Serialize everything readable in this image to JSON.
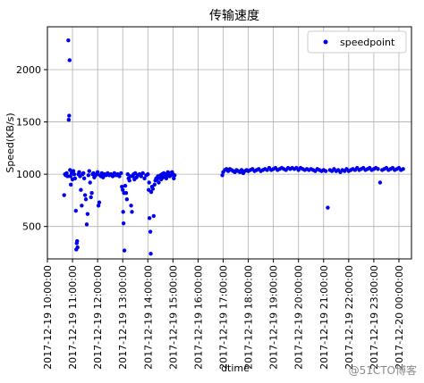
{
  "chart_data": {
    "type": "scatter",
    "title": "传输速度",
    "xlabel": "dtime",
    "ylabel": "Speed(KB/s)",
    "xlim": [
      "2017-12-19 10:00",
      "2017-12-20 00:30"
    ],
    "ylim": [
      190,
      2410
    ],
    "grid": true,
    "legend_position": "top-right",
    "marker_color": "#0000ee",
    "y_ticks": [
      500,
      1000,
      1500,
      2000
    ],
    "x_ticks": [
      "2017-12-19 10:00:00",
      "2017-12-19 11:00:00",
      "2017-12-19 12:00:00",
      "2017-12-19 13:00:00",
      "2017-12-19 14:00:00",
      "2017-12-19 15:00:00",
      "2017-12-19 16:00:00",
      "2017-12-19 17:00:00",
      "2017-12-19 18:00:00",
      "2017-12-19 19:00:00",
      "2017-12-19 20:00:00",
      "2017-12-19 21:00:00",
      "2017-12-19 22:00:00",
      "2017-12-19 23:00:00",
      "2017-12-20 00:00:00"
    ],
    "series": [
      {
        "name": "speedpoint",
        "points": [
          [
            "2017-12-19 10:40",
            800
          ],
          [
            "2017-12-19 10:42",
            1000
          ],
          [
            "2017-12-19 10:44",
            990
          ],
          [
            "2017-12-19 10:46",
            1010
          ],
          [
            "2017-12-19 10:48",
            980
          ],
          [
            "2017-12-19 10:50",
            2280
          ],
          [
            "2017-12-19 10:51",
            1520
          ],
          [
            "2017-12-19 10:52",
            1560
          ],
          [
            "2017-12-19 10:53",
            2090
          ],
          [
            "2017-12-19 10:54",
            1040
          ],
          [
            "2017-12-19 10:55",
            980
          ],
          [
            "2017-12-19 10:56",
            900
          ],
          [
            "2017-12-19 10:58",
            1010
          ],
          [
            "2017-12-19 11:00",
            950
          ],
          [
            "2017-12-19 11:02",
            1030
          ],
          [
            "2017-12-19 11:04",
            1000
          ],
          [
            "2017-12-19 11:06",
            960
          ],
          [
            "2017-12-19 11:08",
            650
          ],
          [
            "2017-12-19 11:09",
            280
          ],
          [
            "2017-12-19 11:10",
            340
          ],
          [
            "2017-12-19 11:11",
            360
          ],
          [
            "2017-12-19 11:12",
            300
          ],
          [
            "2017-12-19 11:14",
            1000
          ],
          [
            "2017-12-19 11:16",
            1020
          ],
          [
            "2017-12-19 11:18",
            980
          ],
          [
            "2017-12-19 11:20",
            850
          ],
          [
            "2017-12-19 11:22",
            700
          ],
          [
            "2017-12-19 11:24",
            1000
          ],
          [
            "2017-12-19 11:26",
            1010
          ],
          [
            "2017-12-19 11:28",
            960
          ],
          [
            "2017-12-19 11:30",
            800
          ],
          [
            "2017-12-19 11:32",
            760
          ],
          [
            "2017-12-19 11:34",
            520
          ],
          [
            "2017-12-19 11:36",
            620
          ],
          [
            "2017-12-19 11:38",
            990
          ],
          [
            "2017-12-19 11:40",
            1030
          ],
          [
            "2017-12-19 11:42",
            920
          ],
          [
            "2017-12-19 11:44",
            780
          ],
          [
            "2017-12-19 11:46",
            820
          ],
          [
            "2017-12-19 11:48",
            1000
          ],
          [
            "2017-12-19 11:50",
            1010
          ],
          [
            "2017-12-19 11:52",
            970
          ],
          [
            "2017-12-19 11:55",
            990
          ],
          [
            "2017-12-19 11:58",
            1000
          ],
          [
            "2017-12-19 12:00",
            1020
          ],
          [
            "2017-12-19 12:02",
            700
          ],
          [
            "2017-12-19 12:04",
            730
          ],
          [
            "2017-12-19 12:06",
            990
          ],
          [
            "2017-12-19 12:08",
            980
          ],
          [
            "2017-12-19 12:10",
            1010
          ],
          [
            "2017-12-19 12:13",
            970
          ],
          [
            "2017-12-19 12:16",
            1000
          ],
          [
            "2017-12-19 12:20",
            990
          ],
          [
            "2017-12-19 12:24",
            1010
          ],
          [
            "2017-12-19 12:28",
            990
          ],
          [
            "2017-12-19 12:32",
            1000
          ],
          [
            "2017-12-19 12:36",
            980
          ],
          [
            "2017-12-19 12:40",
            1010
          ],
          [
            "2017-12-19 12:44",
            990
          ],
          [
            "2017-12-19 12:48",
            1000
          ],
          [
            "2017-12-19 12:52",
            980
          ],
          [
            "2017-12-19 12:56",
            1010
          ],
          [
            "2017-12-19 12:58",
            880
          ],
          [
            "2017-12-19 13:00",
            850
          ],
          [
            "2017-12-19 13:01",
            640
          ],
          [
            "2017-12-19 13:02",
            530
          ],
          [
            "2017-12-19 13:03",
            820
          ],
          [
            "2017-12-19 13:04",
            270
          ],
          [
            "2017-12-19 13:06",
            890
          ],
          [
            "2017-12-19 13:08",
            820
          ],
          [
            "2017-12-19 13:10",
            760
          ],
          [
            "2017-12-19 13:12",
            1000
          ],
          [
            "2017-12-19 13:14",
            960
          ],
          [
            "2017-12-19 13:16",
            940
          ],
          [
            "2017-12-19 13:18",
            980
          ],
          [
            "2017-12-19 13:20",
            700
          ],
          [
            "2017-12-19 13:22",
            640
          ],
          [
            "2017-12-19 13:24",
            980
          ],
          [
            "2017-12-19 13:26",
            1000
          ],
          [
            "2017-12-19 13:28",
            950
          ],
          [
            "2017-12-19 13:30",
            1010
          ],
          [
            "2017-12-19 13:33",
            970
          ],
          [
            "2017-12-19 13:36",
            990
          ],
          [
            "2017-12-19 13:40",
            1000
          ],
          [
            "2017-12-19 13:44",
            980
          ],
          [
            "2017-12-19 13:48",
            1010
          ],
          [
            "2017-12-19 13:52",
            960
          ],
          [
            "2017-12-19 13:56",
            990
          ],
          [
            "2017-12-19 14:00",
            1000
          ],
          [
            "2017-12-19 14:02",
            850
          ],
          [
            "2017-12-19 14:03",
            920
          ],
          [
            "2017-12-19 14:04",
            580
          ],
          [
            "2017-12-19 14:06",
            450
          ],
          [
            "2017-12-19 14:07",
            240
          ],
          [
            "2017-12-19 14:08",
            830
          ],
          [
            "2017-12-19 14:10",
            880
          ],
          [
            "2017-12-19 14:12",
            860
          ],
          [
            "2017-12-19 14:14",
            600
          ],
          [
            "2017-12-19 14:16",
            900
          ],
          [
            "2017-12-19 14:18",
            940
          ],
          [
            "2017-12-19 14:20",
            960
          ],
          [
            "2017-12-19 14:22",
            950
          ],
          [
            "2017-12-19 14:24",
            980
          ],
          [
            "2017-12-19 14:26",
            920
          ],
          [
            "2017-12-19 14:28",
            970
          ],
          [
            "2017-12-19 14:30",
            990
          ],
          [
            "2017-12-19 14:32",
            950
          ],
          [
            "2017-12-19 14:34",
            1000
          ],
          [
            "2017-12-19 14:36",
            970
          ],
          [
            "2017-12-19 14:38",
            1010
          ],
          [
            "2017-12-19 14:40",
            980
          ],
          [
            "2017-12-19 14:42",
            1000
          ],
          [
            "2017-12-19 14:44",
            960
          ],
          [
            "2017-12-19 14:46",
            990
          ],
          [
            "2017-12-19 14:48",
            1020
          ],
          [
            "2017-12-19 14:50",
            1000
          ],
          [
            "2017-12-19 14:52",
            980
          ],
          [
            "2017-12-19 14:54",
            1010
          ],
          [
            "2017-12-19 14:56",
            990
          ],
          [
            "2017-12-19 14:58",
            1020
          ],
          [
            "2017-12-19 15:00",
            1000
          ],
          [
            "2017-12-19 15:02",
            960
          ],
          [
            "2017-12-19 15:04",
            990
          ],
          [
            "2017-12-19 16:58",
            990
          ],
          [
            "2017-12-19 17:00",
            1020
          ],
          [
            "2017-12-19 17:04",
            1040
          ],
          [
            "2017-12-19 17:08",
            1050
          ],
          [
            "2017-12-19 17:12",
            1030
          ],
          [
            "2017-12-19 17:16",
            1050
          ],
          [
            "2017-12-19 17:20",
            1040
          ],
          [
            "2017-12-19 17:24",
            1030
          ],
          [
            "2017-12-19 17:28",
            1020
          ],
          [
            "2017-12-19 17:32",
            1040
          ],
          [
            "2017-12-19 17:36",
            1030
          ],
          [
            "2017-12-19 17:40",
            1020
          ],
          [
            "2017-12-19 17:44",
            1040
          ],
          [
            "2017-12-19 17:48",
            1010
          ],
          [
            "2017-12-19 17:52",
            1030
          ],
          [
            "2017-12-19 17:56",
            1040
          ],
          [
            "2017-12-19 18:00",
            1030
          ],
          [
            "2017-12-19 18:05",
            1040
          ],
          [
            "2017-12-19 18:10",
            1050
          ],
          [
            "2017-12-19 18:15",
            1030
          ],
          [
            "2017-12-19 18:20",
            1040
          ],
          [
            "2017-12-19 18:25",
            1050
          ],
          [
            "2017-12-19 18:30",
            1030
          ],
          [
            "2017-12-19 18:35",
            1040
          ],
          [
            "2017-12-19 18:40",
            1050
          ],
          [
            "2017-12-19 18:45",
            1040
          ],
          [
            "2017-12-19 18:50",
            1060
          ],
          [
            "2017-12-19 18:55",
            1040
          ],
          [
            "2017-12-19 19:00",
            1050
          ],
          [
            "2017-12-19 19:05",
            1060
          ],
          [
            "2017-12-19 19:10",
            1040
          ],
          [
            "2017-12-19 19:15",
            1050
          ],
          [
            "2017-12-19 19:20",
            1060
          ],
          [
            "2017-12-19 19:25",
            1050
          ],
          [
            "2017-12-19 19:30",
            1040
          ],
          [
            "2017-12-19 19:35",
            1060
          ],
          [
            "2017-12-19 19:40",
            1050
          ],
          [
            "2017-12-19 19:45",
            1060
          ],
          [
            "2017-12-19 19:50",
            1050
          ],
          [
            "2017-12-19 19:55",
            1060
          ],
          [
            "2017-12-19 20:00",
            1040
          ],
          [
            "2017-12-19 20:05",
            1060
          ],
          [
            "2017-12-19 20:10",
            1050
          ],
          [
            "2017-12-19 20:15",
            1040
          ],
          [
            "2017-12-19 20:20",
            1050
          ],
          [
            "2017-12-19 20:25",
            1040
          ],
          [
            "2017-12-19 20:30",
            1050
          ],
          [
            "2017-12-19 20:35",
            1040
          ],
          [
            "2017-12-19 20:40",
            1030
          ],
          [
            "2017-12-19 20:45",
            1050
          ],
          [
            "2017-12-19 20:50",
            1040
          ],
          [
            "2017-12-19 20:55",
            1030
          ],
          [
            "2017-12-19 21:00",
            1040
          ],
          [
            "2017-12-19 21:05",
            1030
          ],
          [
            "2017-12-19 21:10",
            680
          ],
          [
            "2017-12-19 21:15",
            1040
          ],
          [
            "2017-12-19 21:20",
            1030
          ],
          [
            "2017-12-19 21:25",
            1050
          ],
          [
            "2017-12-19 21:30",
            1030
          ],
          [
            "2017-12-19 21:35",
            1040
          ],
          [
            "2017-12-19 21:40",
            1020
          ],
          [
            "2017-12-19 21:45",
            1040
          ],
          [
            "2017-12-19 21:50",
            1030
          ],
          [
            "2017-12-19 21:55",
            1050
          ],
          [
            "2017-12-19 22:00",
            1030
          ],
          [
            "2017-12-19 22:05",
            1040
          ],
          [
            "2017-12-19 22:10",
            1050
          ],
          [
            "2017-12-19 22:15",
            1040
          ],
          [
            "2017-12-19 22:20",
            1060
          ],
          [
            "2017-12-19 22:25",
            1040
          ],
          [
            "2017-12-19 22:30",
            1050
          ],
          [
            "2017-12-19 22:35",
            1060
          ],
          [
            "2017-12-19 22:40",
            1040
          ],
          [
            "2017-12-19 22:45",
            1050
          ],
          [
            "2017-12-19 22:50",
            1060
          ],
          [
            "2017-12-19 22:55",
            1040
          ],
          [
            "2017-12-19 23:00",
            1050
          ],
          [
            "2017-12-19 23:05",
            1060
          ],
          [
            "2017-12-19 23:10",
            1050
          ],
          [
            "2017-12-19 23:15",
            920
          ],
          [
            "2017-12-19 23:20",
            1040
          ],
          [
            "2017-12-19 23:25",
            1050
          ],
          [
            "2017-12-19 23:30",
            1060
          ],
          [
            "2017-12-19 23:35",
            1040
          ],
          [
            "2017-12-19 23:40",
            1050
          ],
          [
            "2017-12-19 23:45",
            1060
          ],
          [
            "2017-12-19 23:50",
            1040
          ],
          [
            "2017-12-19 23:55",
            1050
          ],
          [
            "2017-12-20 00:00",
            1060
          ],
          [
            "2017-12-20 00:05",
            1040
          ],
          [
            "2017-12-20 00:10",
            1050
          ]
        ]
      }
    ]
  },
  "watermark": "@51CTO博客"
}
